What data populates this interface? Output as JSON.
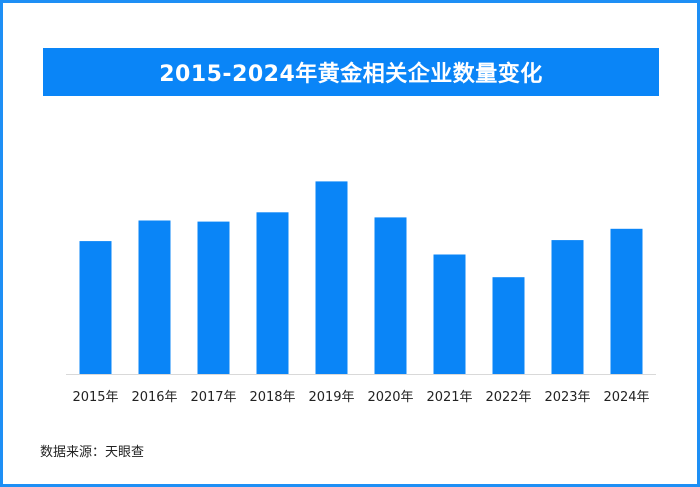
{
  "title": "2015-2024年黄金相关企业数量变化",
  "source": "数据来源：天眼查",
  "colors": {
    "bar": "#0a85f7",
    "frame": "#1e8ff5",
    "title_bg": "#0a85f7"
  },
  "chart_data": {
    "type": "bar",
    "title": "2015-2024年黄金相关企业数量变化",
    "categories": [
      "2015年",
      "2016年",
      "2017年",
      "2018年",
      "2019年",
      "2020年",
      "2021年",
      "2022年",
      "2023年",
      "2024年"
    ],
    "values": [
      129,
      149,
      148,
      157,
      187,
      152,
      116,
      94,
      130,
      141
    ],
    "xlabel": "",
    "ylabel": "",
    "ylim": [
      0,
      200
    ],
    "grid": false,
    "legend": "none"
  }
}
